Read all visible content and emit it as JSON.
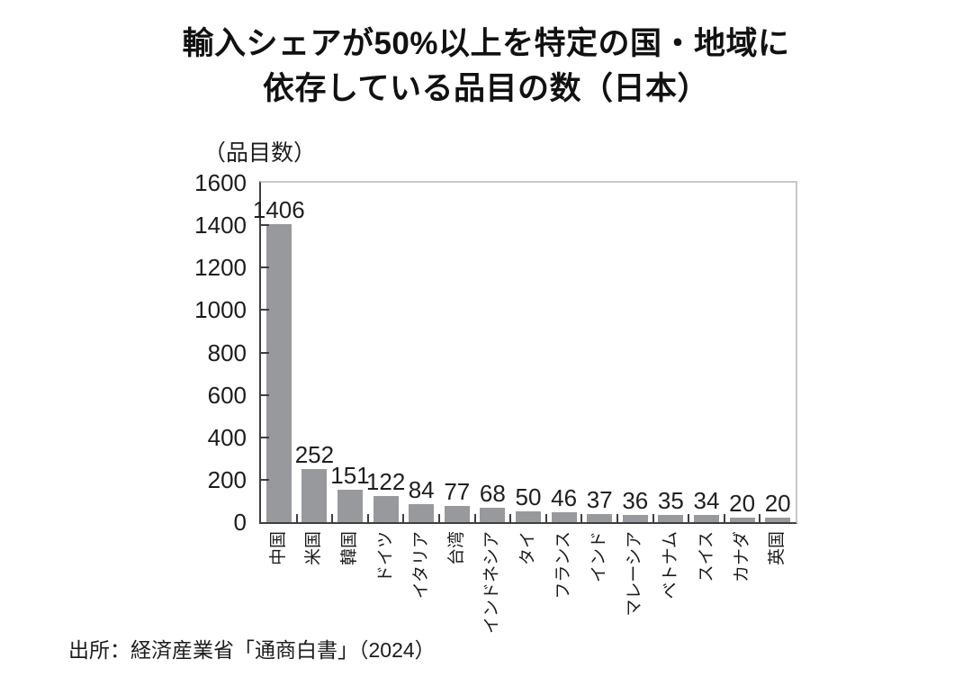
{
  "chart_data": {
    "type": "bar",
    "title_lines": [
      "輸入シェアが50%以上を特定の国・地域に",
      "依存している品目の数（日本）"
    ],
    "unit_label": "（品目数）",
    "categories": [
      "中国",
      "米国",
      "韓国",
      "ドイツ",
      "イタリア",
      "台湾",
      "インドネシア",
      "タイ",
      "フランス",
      "インド",
      "マレーシア",
      "ベトナム",
      "スイス",
      "カナダ",
      "英国"
    ],
    "values": [
      1406,
      252,
      151,
      122,
      84,
      77,
      68,
      50,
      46,
      37,
      36,
      35,
      34,
      20,
      20
    ],
    "ylim": [
      0,
      1600
    ],
    "ytick_interval": 200,
    "ytick_labels": [
      "0",
      "200",
      "400",
      "600",
      "800",
      "1000",
      "1200",
      "1400",
      "1600"
    ],
    "grid": false,
    "legend": "none",
    "bar_color": "#97999c",
    "axis_color": "#3f3f3f",
    "frame_color": "#c9c9c9",
    "text_color": "#1c1c1c",
    "source": "出所：経済産業省「通商白書」（2024）"
  }
}
